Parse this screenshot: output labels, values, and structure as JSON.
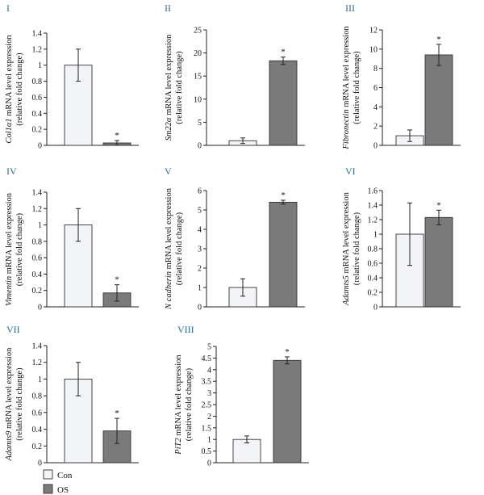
{
  "legend": [
    {
      "label": "Con",
      "color": "#f2f4f7"
    },
    {
      "label": "OS",
      "color": "#7a7a7a"
    }
  ],
  "chart_data": [
    {
      "type": "bar",
      "panel": "I",
      "gene": "Col1α1",
      "ylabel_suffix": "mRNA level expression",
      "ylabel_line2": "(relative fold change)",
      "categories": [
        "Con",
        "OS"
      ],
      "values": [
        1.0,
        0.03
      ],
      "errors": [
        0.2,
        0.03
      ],
      "significance": [
        "",
        "*"
      ],
      "ylim": [
        0,
        1.4
      ],
      "yticks": [
        "0",
        "0.2",
        "0.4",
        "0.6",
        "0.8",
        "1",
        "1.2",
        "1.4"
      ]
    },
    {
      "type": "bar",
      "panel": "II",
      "gene": "Sm22α",
      "ylabel_suffix": "mRNA level expression",
      "ylabel_line2": "(relative fold change)",
      "categories": [
        "Con",
        "OS"
      ],
      "values": [
        1.0,
        18.3
      ],
      "errors": [
        0.6,
        0.8
      ],
      "significance": [
        "",
        "*"
      ],
      "ylim": [
        0,
        25
      ],
      "yticks": [
        "0",
        "5",
        "10",
        "15",
        "20",
        "25"
      ]
    },
    {
      "type": "bar",
      "panel": "III",
      "gene": "Fibronectin",
      "ylabel_suffix": "mRNA level expression",
      "ylabel_line2": "(relative fold change)",
      "categories": [
        "Con",
        "OS"
      ],
      "values": [
        1.0,
        9.4
      ],
      "errors": [
        0.6,
        1.1
      ],
      "significance": [
        "",
        "*"
      ],
      "ylim": [
        0,
        12
      ],
      "yticks": [
        "0",
        "2",
        "4",
        "6",
        "8",
        "10",
        "12"
      ]
    },
    {
      "type": "bar",
      "panel": "IV",
      "gene": "Vimentin",
      "ylabel_suffix": "mRNA level expression",
      "ylabel_line2": "(relative fold change)",
      "categories": [
        "Con",
        "OS"
      ],
      "values": [
        1.0,
        0.17
      ],
      "errors": [
        0.2,
        0.1
      ],
      "significance": [
        "",
        "*"
      ],
      "ylim": [
        0,
        1.4
      ],
      "yticks": [
        "0",
        "0.2",
        "0.4",
        "0.6",
        "0.8",
        "1",
        "1.2",
        "1.4"
      ]
    },
    {
      "type": "bar",
      "panel": "V",
      "gene": "N cadherin",
      "ylabel_suffix": "mRNA level expression",
      "ylabel_line2": "(relative fold change)",
      "categories": [
        "Con",
        "OS"
      ],
      "values": [
        1.0,
        5.4
      ],
      "errors": [
        0.45,
        0.1
      ],
      "significance": [
        "",
        "*"
      ],
      "ylim": [
        0,
        6
      ],
      "yticks": [
        "0",
        "1",
        "2",
        "3",
        "4",
        "5",
        "6"
      ]
    },
    {
      "type": "bar",
      "panel": "VI",
      "gene": "Adamts5",
      "ylabel_suffix": "mRNA level expression",
      "ylabel_line2": "(relative fold change)",
      "categories": [
        "Con",
        "OS"
      ],
      "values": [
        1.0,
        1.23
      ],
      "errors": [
        0.43,
        0.1
      ],
      "significance": [
        "",
        "*"
      ],
      "ylim": [
        0,
        1.6
      ],
      "yticks": [
        "0",
        "0.2",
        "0.4",
        "0.6",
        "0.8",
        "1",
        "1.2",
        "1.4",
        "1.6"
      ]
    },
    {
      "type": "bar",
      "panel": "VII",
      "gene": "Adamts9",
      "ylabel_suffix": "mRNA level expression",
      "ylabel_line2": "(relative fold change)",
      "categories": [
        "Con",
        "OS"
      ],
      "values": [
        1.0,
        0.38
      ],
      "errors": [
        0.2,
        0.15
      ],
      "significance": [
        "",
        "*"
      ],
      "ylim": [
        0,
        1.4
      ],
      "yticks": [
        "0",
        "0.2",
        "0.4",
        "0.6",
        "0.8",
        "1",
        "1.2",
        "1.4"
      ]
    },
    {
      "type": "bar",
      "panel": "VIII",
      "gene": "PiT2",
      "ylabel_suffix": "mRNA level expression",
      "ylabel_line2": "(relative fold change)",
      "categories": [
        "Con",
        "OS"
      ],
      "values": [
        1.0,
        4.4
      ],
      "errors": [
        0.15,
        0.15
      ],
      "significance": [
        "",
        "*"
      ],
      "ylim": [
        0,
        5
      ],
      "yticks": [
        "0",
        "0.5",
        "1",
        "1.5",
        "2",
        "2.5",
        "3",
        "3.5",
        "4",
        "4.5",
        "5"
      ]
    }
  ]
}
